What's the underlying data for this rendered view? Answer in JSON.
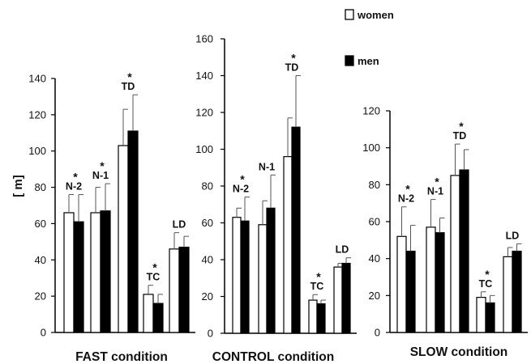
{
  "chart_data": {
    "type": "bar",
    "ylabel": "[ m]",
    "legend": {
      "placement": "top-right",
      "entries": [
        "women",
        "men"
      ]
    },
    "series_names": [
      "women",
      "men"
    ],
    "series_colors": {
      "women": "#ffffff",
      "men": "#000000"
    },
    "grid": false,
    "panels": [
      {
        "title": "FAST condition",
        "ylim": [
          0,
          140
        ],
        "yticks": [
          0,
          20,
          40,
          60,
          80,
          100,
          120,
          140
        ],
        "groups": [
          {
            "label": "N-2",
            "asterisk": "*",
            "women": 66,
            "men": 61,
            "women_err": 10,
            "men_err": 15
          },
          {
            "label": "N-1",
            "asterisk": "*",
            "women": 66,
            "men": 67,
            "women_err": 14,
            "men_err": 15
          },
          {
            "label": "TD",
            "asterisk": "*",
            "women": 103,
            "men": 111,
            "women_err": 20,
            "men_err": 20
          },
          {
            "label": "TC",
            "asterisk": "*",
            "women": 21,
            "men": 16,
            "women_err": 5,
            "men_err": 5
          },
          {
            "label": "LD",
            "asterisk": "",
            "women": 46,
            "men": 47,
            "women_err": 9,
            "men_err": 6
          }
        ]
      },
      {
        "title": "CONTROL condition",
        "ylim": [
          0,
          160
        ],
        "yticks": [
          0,
          20,
          40,
          60,
          80,
          100,
          120,
          140,
          160
        ],
        "groups": [
          {
            "label": "N-2",
            "asterisk": "*",
            "women": 63,
            "men": 61,
            "women_err": 5,
            "men_err": 13
          },
          {
            "label": "N-1",
            "asterisk": "",
            "women": 59,
            "men": 68,
            "women_err": 13,
            "men_err": 18
          },
          {
            "label": "TD",
            "asterisk": "*",
            "women": 96,
            "men": 112,
            "women_err": 21,
            "men_err": 28
          },
          {
            "label": "TC",
            "asterisk": "*",
            "women": 18,
            "men": 16,
            "women_err": 3,
            "men_err": 2
          },
          {
            "label": "LD",
            "asterisk": "",
            "women": 36,
            "men": 38,
            "women_err": 2,
            "men_err": 3
          }
        ]
      },
      {
        "title": "SLOW condition",
        "ylim": [
          0,
          120
        ],
        "yticks": [
          0,
          20,
          40,
          60,
          80,
          100,
          120
        ],
        "groups": [
          {
            "label": "N-2",
            "asterisk": "*",
            "women": 52,
            "men": 44,
            "women_err": 16,
            "men_err": 14
          },
          {
            "label": "N-1",
            "asterisk": "*",
            "women": 57,
            "men": 54,
            "women_err": 15,
            "men_err": 8
          },
          {
            "label": "TD",
            "asterisk": "*",
            "women": 85,
            "men": 88,
            "women_err": 17,
            "men_err": 11
          },
          {
            "label": "TC",
            "asterisk": "*",
            "women": 19,
            "men": 16,
            "women_err": 3,
            "men_err": 4
          },
          {
            "label": "LD",
            "asterisk": "",
            "women": 41,
            "men": 44,
            "women_err": 5,
            "men_err": 4
          }
        ]
      }
    ]
  }
}
